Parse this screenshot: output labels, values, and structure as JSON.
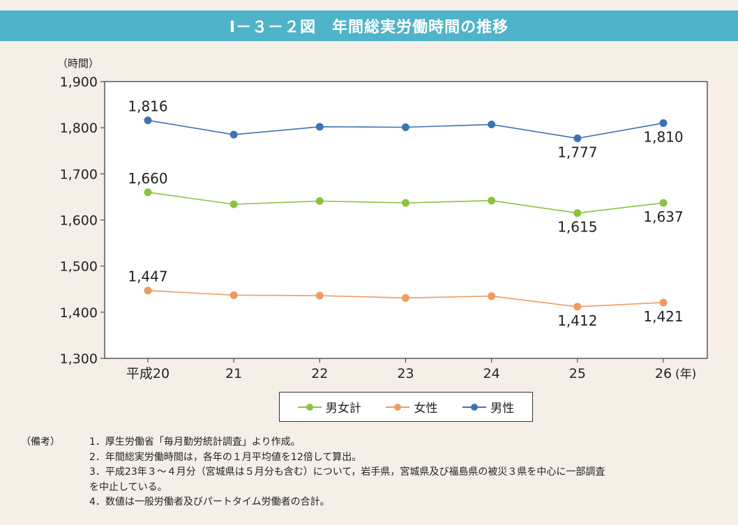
{
  "title": "Ⅰ－３－２図　年間総実労働時間の推移",
  "chart_data": {
    "type": "line",
    "y_unit": "（時間）",
    "x_unit": "(年)",
    "categories": [
      "平成20",
      "21",
      "22",
      "23",
      "24",
      "25",
      "26"
    ],
    "ylim": [
      1300,
      1900
    ],
    "yticks": [
      1300,
      1400,
      1500,
      1600,
      1700,
      1800,
      1900
    ],
    "ytick_labels": [
      "1,300",
      "1,400",
      "1,500",
      "1,600",
      "1,700",
      "1,800",
      "1,900"
    ],
    "grid": false,
    "legend_position": "bottom",
    "series": [
      {
        "name": "男女計",
        "color": "#8cc23f",
        "values": [
          1660,
          1634,
          1641,
          1637,
          1642,
          1615,
          1637
        ],
        "labels": [
          {
            "index": 0,
            "text": "1,660",
            "pos": "above"
          },
          {
            "index": 5,
            "text": "1,615",
            "pos": "below"
          },
          {
            "index": 6,
            "text": "1,637",
            "pos": "below"
          }
        ]
      },
      {
        "name": "女性",
        "color": "#ef9b62",
        "values": [
          1447,
          1437,
          1436,
          1431,
          1435,
          1412,
          1421
        ],
        "labels": [
          {
            "index": 0,
            "text": "1,447",
            "pos": "above"
          },
          {
            "index": 5,
            "text": "1,412",
            "pos": "below"
          },
          {
            "index": 6,
            "text": "1,421",
            "pos": "below"
          }
        ]
      },
      {
        "name": "男性",
        "color": "#3d72b5",
        "values": [
          1816,
          1785,
          1802,
          1801,
          1807,
          1777,
          1810
        ],
        "labels": [
          {
            "index": 0,
            "text": "1,816",
            "pos": "above"
          },
          {
            "index": 5,
            "text": "1,777",
            "pos": "below"
          },
          {
            "index": 6,
            "text": "1,810",
            "pos": "below"
          }
        ]
      }
    ]
  },
  "notes": {
    "head": "（備考）",
    "items": [
      "1．厚生労働省「毎月勤労統計調査」より作成。",
      "2．年間総実労働時間は，各年の１月平均値を12倍して算出。",
      "3．平成23年３～４月分（宮城県は５月分も含む）について，岩手県，宮城県及び福島県の被災３県を中心に一部調査",
      "4．数値は一般労働者及びパートタイム労働者の合計。"
    ],
    "item3_cont": "を中止している。"
  }
}
